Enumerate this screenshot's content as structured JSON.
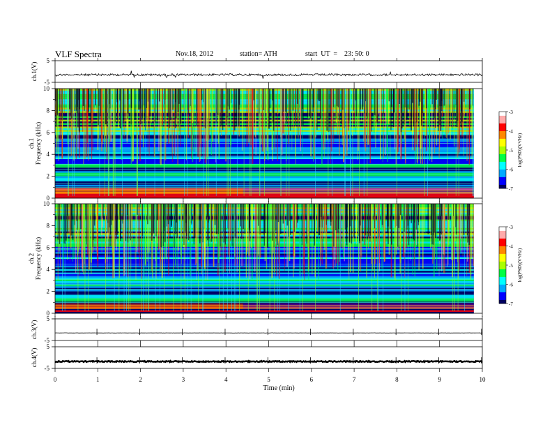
{
  "header": {
    "title": "VLF  Spectra",
    "date": "Nov.18, 2012",
    "station": "station= ATH",
    "start": "start  UT  =    23: 50: 0"
  },
  "chart_data": {
    "type": "heatmap",
    "xlabel": "Time  (min)",
    "xlim": [
      0,
      10
    ],
    "xticks": [
      0,
      1,
      2,
      3,
      4,
      5,
      6,
      7,
      8,
      9,
      10
    ],
    "panels": [
      {
        "id": "ch1-waveform",
        "type": "line",
        "ylabel": "ch.1(V)",
        "ylim": [
          -5,
          5
        ],
        "yticks": [
          5,
          -5
        ],
        "baseline": -1.5,
        "trace": "dense noise with spikes"
      },
      {
        "id": "ch1-spectrogram",
        "type": "heatmap",
        "ylabel_top": "ch.1",
        "ylabel": "Frequency  (kHz)",
        "ylim": [
          0,
          10
        ],
        "yticks": [
          0,
          2,
          4,
          6,
          8,
          10
        ],
        "data_end_min": 9.8,
        "transition_min": 4.4
      },
      {
        "id": "ch2-spectrogram",
        "type": "heatmap",
        "ylabel_top": "ch.2",
        "ylabel": "Frequency  (kHz)",
        "ylim": [
          0,
          10
        ],
        "yticks": [
          0,
          2,
          4,
          6,
          8,
          10
        ],
        "data_end_min": 9.8,
        "transition_min": 4.4
      },
      {
        "id": "ch3-waveform",
        "type": "line",
        "ylabel": "ch.3(V)",
        "ylim": [
          -5,
          5
        ],
        "yticks": [
          5,
          -5
        ],
        "baseline": -1.5,
        "trace": "flat"
      },
      {
        "id": "ch4-waveform",
        "type": "line",
        "ylabel": "ch.4(V)",
        "ylim": [
          -5,
          5
        ],
        "yticks": [
          5,
          -5
        ],
        "baseline": -1.8,
        "trace": "thick flat noise"
      }
    ],
    "colorbar": {
      "label": "log(PSD)(V²/Hz)",
      "range": [
        -7,
        -3
      ],
      "ticks": [
        -3,
        -4,
        -5,
        -6,
        -7
      ],
      "colors": [
        "#000060",
        "#0000ff",
        "#00aaff",
        "#00ffff",
        "#00ff44",
        "#aaff00",
        "#ffff00",
        "#ff8800",
        "#ff0000",
        "#ffaaaa",
        "#ffffff"
      ]
    }
  }
}
